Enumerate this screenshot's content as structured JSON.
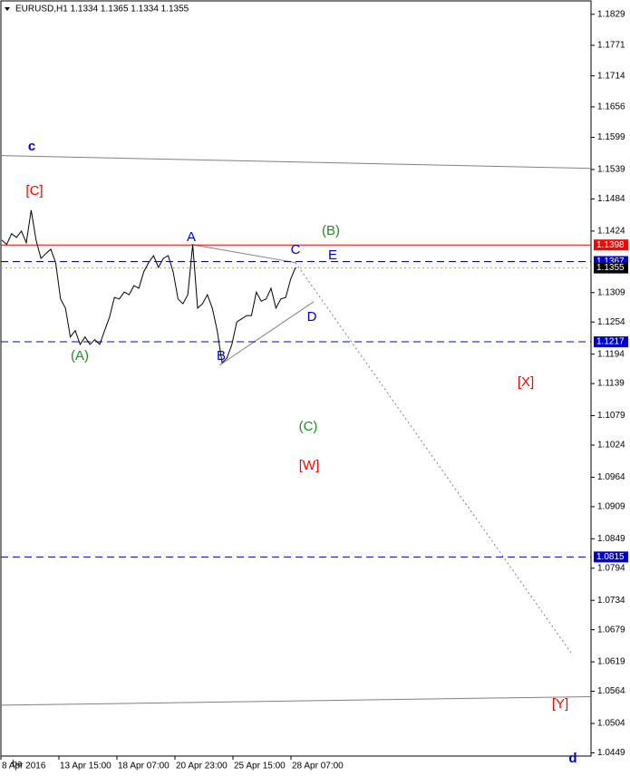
{
  "chart_data": {
    "type": "line",
    "title": "EURUSD,H1  1.1334 1.1365 1.1334 1.1355",
    "x_labels": [
      "8 Apr 2016",
      "13 Apr 15:00",
      "18 Apr 07:00",
      "20 Apr 23:00",
      "25 Apr 15:00",
      "28 Apr 07:00"
    ],
    "ylim": [
      1.0443,
      1.1854
    ],
    "yticks": [
      1.1829,
      1.1771,
      1.1714,
      1.1656,
      1.1599,
      1.1539,
      1.1484,
      1.1424,
      1.1309,
      1.1254,
      1.1194,
      1.1139,
      1.1079,
      1.1024,
      1.0964,
      1.0909,
      1.0849,
      1.0794,
      1.0734,
      1.0679,
      1.0619,
      1.0564,
      1.0504,
      1.0449
    ],
    "series": [
      {
        "color": "#000000",
        "values": [
          1.1407,
          1.1399,
          1.1419,
          1.1412,
          1.1424,
          1.1402,
          1.1463,
          1.1407,
          1.1373,
          1.1382,
          1.139,
          1.1365,
          1.1297,
          1.128,
          1.1226,
          1.1238,
          1.1212,
          1.1226,
          1.1212,
          1.1221,
          1.1212,
          1.1238,
          1.1263,
          1.13,
          1.1297,
          1.131,
          1.1305,
          1.1322,
          1.1317,
          1.1348,
          1.1365,
          1.1378,
          1.1356,
          1.1373,
          1.1378,
          1.1348,
          1.1297,
          1.1288,
          1.1305,
          1.1399,
          1.128,
          1.1288,
          1.1305,
          1.128,
          1.1238,
          1.1178,
          1.1187,
          1.1212,
          1.1254,
          1.126,
          1.1266,
          1.1266,
          1.131,
          1.1293,
          1.1297,
          1.1317,
          1.128,
          1.1297,
          1.13,
          1.1334,
          1.1356
        ]
      }
    ],
    "levels": [
      {
        "value": 1.1398,
        "color": "#ff0000",
        "style": "solid"
      },
      {
        "value": 1.1367,
        "color": "#0000cc",
        "style": "dashed"
      },
      {
        "value": 1.1355,
        "color": "#a0a0a0",
        "style": "dotted"
      },
      {
        "value": 1.1217,
        "color": "#0000cc",
        "style": "dashed"
      },
      {
        "value": 1.0815,
        "color": "#0000cc",
        "style": "dashed"
      }
    ],
    "trendlines": [
      {
        "values": [
          1.1565,
          1.1541
        ],
        "color": "#808080",
        "style": "solid"
      },
      {
        "values": [
          1.0538,
          1.0554
        ],
        "color": "#808080",
        "style": "solid"
      },
      {
        "values": [
          1.1399,
          1.1365
        ],
        "color": "#808080",
        "style": "solid"
      },
      {
        "values": [
          1.1173,
          1.1292
        ],
        "color": "#808080",
        "style": "solid"
      },
      {
        "values": [
          1.1365,
          1.0631
        ],
        "color": "#808080",
        "style": "dotted"
      }
    ],
    "wave_labels": [
      {
        "text": "c",
        "color": "#0000cc"
      },
      {
        "text": "[C]",
        "color": "#ff0000"
      },
      {
        "text": "(B)",
        "color": "#228b22"
      },
      {
        "text": "A",
        "color": "#0000cc"
      },
      {
        "text": "C",
        "color": "#0000cc"
      },
      {
        "text": "E",
        "color": "#0000cc"
      },
      {
        "text": "D",
        "color": "#0000cc"
      },
      {
        "text": "(A)",
        "color": "#228b22"
      },
      {
        "text": "B",
        "color": "#0000cc"
      },
      {
        "text": "[X]",
        "color": "#ff0000"
      },
      {
        "text": "(C)",
        "color": "#228b22"
      },
      {
        "text": "[W]",
        "color": "#ff0000"
      },
      {
        "text": "[Y]",
        "color": "#ff0000"
      },
      {
        "text": "d",
        "color": "#0000cc"
      },
      {
        "text": "ba",
        "color": "#000000"
      }
    ]
  }
}
